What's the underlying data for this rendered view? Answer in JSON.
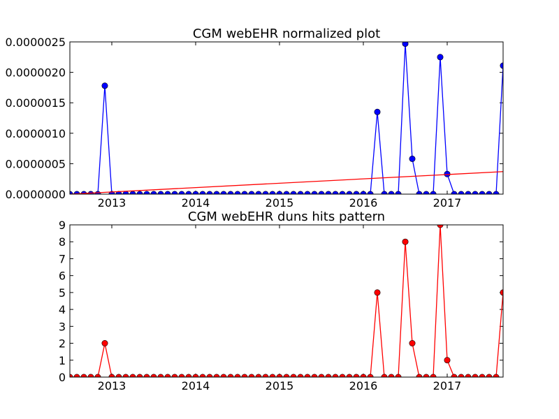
{
  "chart_data": [
    {
      "type": "line",
      "title": "CGM webEHR normalized plot",
      "xlabel": "",
      "ylabel": "",
      "x_axis": "date",
      "xlim": [
        "2012-07",
        "2017-09"
      ],
      "ylim": [
        0,
        2.5e-06
      ],
      "grid": false,
      "x_tick_labels": [
        "2013",
        "2014",
        "2015",
        "2016",
        "2017"
      ],
      "x_tick_values": [
        "2013-01",
        "2014-01",
        "2015-01",
        "2016-01",
        "2017-01"
      ],
      "y_tick_labels": [
        "0.0000000",
        "0.0000005",
        "0.0000010",
        "0.0000015",
        "0.0000020",
        "0.0000025"
      ],
      "y_tick_values": [
        0,
        5e-07,
        1e-06,
        1.5e-06,
        2e-06,
        2.5e-06
      ],
      "series": [
        {
          "style": "line-with-markers",
          "color": "#0000ff",
          "marker_color": "#0000ff",
          "x": [
            "2012-07",
            "2012-08",
            "2012-09",
            "2012-10",
            "2012-11",
            "2012-12",
            "2013-01",
            "2013-02",
            "2013-03",
            "2013-04",
            "2013-05",
            "2013-06",
            "2013-07",
            "2013-08",
            "2013-09",
            "2013-10",
            "2013-11",
            "2013-12",
            "2014-01",
            "2014-02",
            "2014-03",
            "2014-04",
            "2014-05",
            "2014-06",
            "2014-07",
            "2014-08",
            "2014-09",
            "2014-10",
            "2014-11",
            "2014-12",
            "2015-01",
            "2015-02",
            "2015-03",
            "2015-04",
            "2015-05",
            "2015-06",
            "2015-07",
            "2015-08",
            "2015-09",
            "2015-10",
            "2015-11",
            "2015-12",
            "2016-01",
            "2016-02",
            "2016-03",
            "2016-04",
            "2016-05",
            "2016-06",
            "2016-07",
            "2016-08",
            "2016-09",
            "2016-10",
            "2016-11",
            "2016-12",
            "2017-01",
            "2017-02",
            "2017-03",
            "2017-04",
            "2017-05",
            "2017-06",
            "2017-07",
            "2017-08",
            "2017-09"
          ],
          "y": [
            0,
            0,
            0,
            0,
            0,
            1.78e-06,
            0,
            0,
            0,
            0,
            0,
            0,
            0,
            0,
            0,
            0,
            0,
            0,
            0,
            0,
            0,
            0,
            0,
            0,
            0,
            0,
            0,
            0,
            0,
            0,
            0,
            0,
            0,
            0,
            0,
            0,
            0,
            0,
            0,
            0,
            0,
            0,
            0,
            0,
            1.35e-06,
            0,
            0,
            0,
            2.47e-06,
            5.8e-07,
            0,
            0,
            0,
            2.25e-06,
            3.3e-07,
            0,
            0,
            0,
            0,
            0,
            0,
            0,
            2.11e-06
          ]
        },
        {
          "style": "line",
          "color": "#ff0000",
          "x": [
            "2012-07",
            "2017-09"
          ],
          "y": [
            0,
            3.7e-07
          ]
        }
      ]
    },
    {
      "type": "line",
      "title": "CGM webEHR duns hits pattern",
      "xlabel": "",
      "ylabel": "",
      "x_axis": "date",
      "xlim": [
        "2012-07",
        "2017-09"
      ],
      "ylim": [
        0,
        9
      ],
      "grid": false,
      "x_tick_labels": [
        "2013",
        "2014",
        "2015",
        "2016",
        "2017"
      ],
      "x_tick_values": [
        "2013-01",
        "2014-01",
        "2015-01",
        "2016-01",
        "2017-01"
      ],
      "y_tick_labels": [
        "0",
        "1",
        "2",
        "3",
        "4",
        "5",
        "6",
        "7",
        "8",
        "9"
      ],
      "y_tick_values": [
        0,
        1,
        2,
        3,
        4,
        5,
        6,
        7,
        8,
        9
      ],
      "series": [
        {
          "style": "line-with-markers",
          "color": "#ff0000",
          "marker_color": "#ff0000",
          "x": [
            "2012-07",
            "2012-08",
            "2012-09",
            "2012-10",
            "2012-11",
            "2012-12",
            "2013-01",
            "2013-02",
            "2013-03",
            "2013-04",
            "2013-05",
            "2013-06",
            "2013-07",
            "2013-08",
            "2013-09",
            "2013-10",
            "2013-11",
            "2013-12",
            "2014-01",
            "2014-02",
            "2014-03",
            "2014-04",
            "2014-05",
            "2014-06",
            "2014-07",
            "2014-08",
            "2014-09",
            "2014-10",
            "2014-11",
            "2014-12",
            "2015-01",
            "2015-02",
            "2015-03",
            "2015-04",
            "2015-05",
            "2015-06",
            "2015-07",
            "2015-08",
            "2015-09",
            "2015-10",
            "2015-11",
            "2015-12",
            "2016-01",
            "2016-02",
            "2016-03",
            "2016-04",
            "2016-05",
            "2016-06",
            "2016-07",
            "2016-08",
            "2016-09",
            "2016-10",
            "2016-11",
            "2016-12",
            "2017-01",
            "2017-02",
            "2017-03",
            "2017-04",
            "2017-05",
            "2017-06",
            "2017-07",
            "2017-08",
            "2017-09"
          ],
          "y": [
            0,
            0,
            0,
            0,
            0,
            2,
            0,
            0,
            0,
            0,
            0,
            0,
            0,
            0,
            0,
            0,
            0,
            0,
            0,
            0,
            0,
            0,
            0,
            0,
            0,
            0,
            0,
            0,
            0,
            0,
            0,
            0,
            0,
            0,
            0,
            0,
            0,
            0,
            0,
            0,
            0,
            0,
            0,
            0,
            5,
            0,
            0,
            0,
            8,
            2,
            0,
            0,
            0,
            9,
            1,
            0,
            0,
            0,
            0,
            0,
            0,
            0,
            5
          ]
        }
      ]
    }
  ]
}
